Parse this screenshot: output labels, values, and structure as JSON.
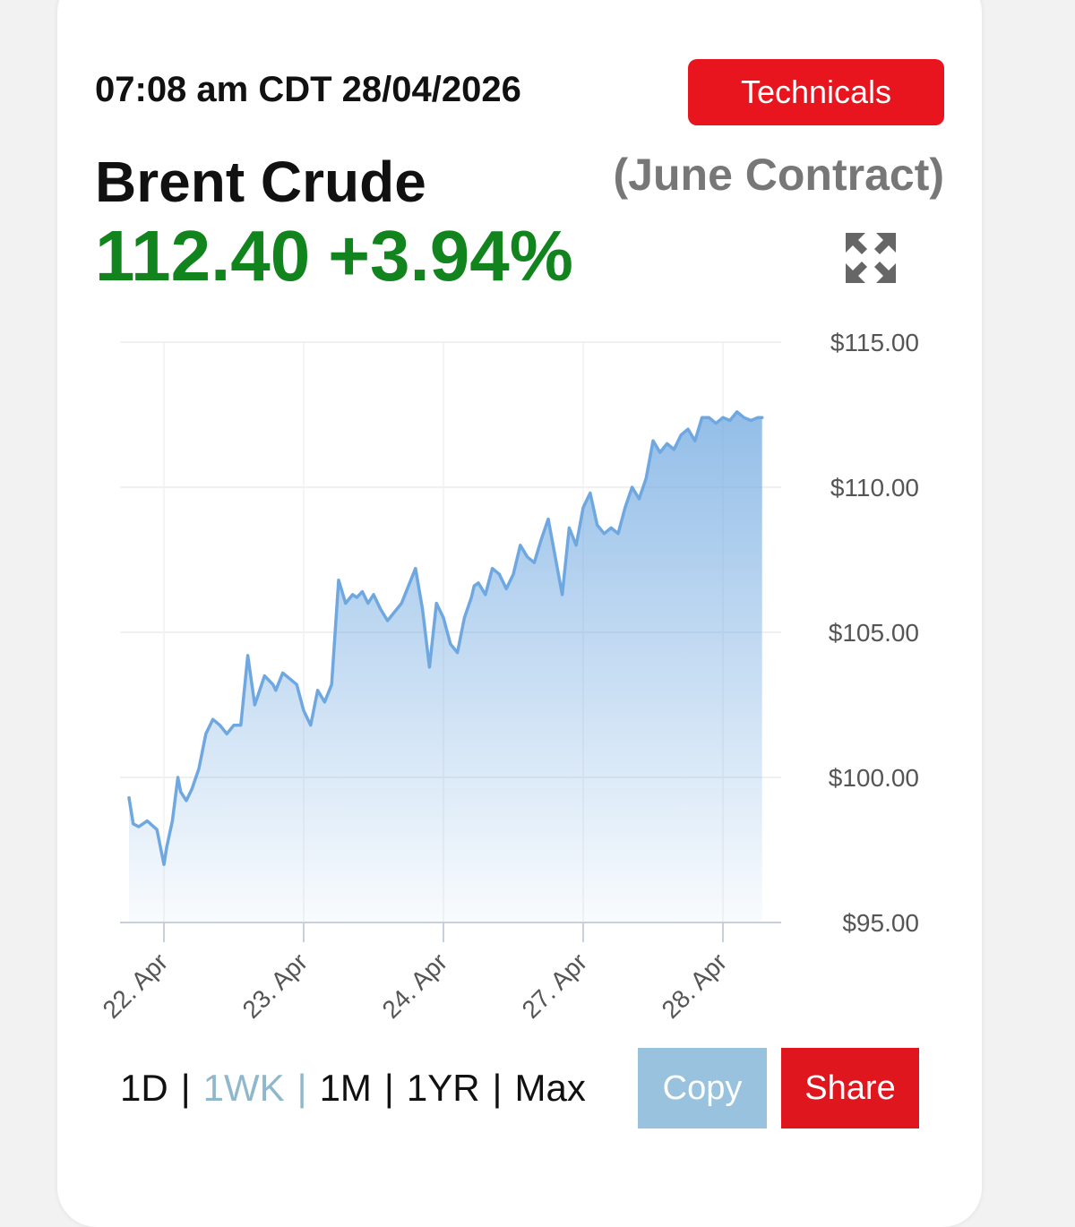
{
  "header": {
    "timestamp": "07:08 am CDT 28/04/2026",
    "technicals_label": "Technicals",
    "title": "Brent Crude",
    "contract": "(June Contract)",
    "price": "112.40",
    "change": "+3.94%",
    "expand_icon": "expand-arrows-icon"
  },
  "colors": {
    "price_green": "#11841d",
    "accent_red": "#e8151e",
    "line_blue": "#6fa8e0",
    "copy_blue": "#98c2dd"
  },
  "chart_data": {
    "type": "area",
    "title": "",
    "xlabel": "",
    "ylabel": "",
    "ylim": [
      95,
      115
    ],
    "yticks": [
      115,
      110,
      105,
      100,
      95
    ],
    "ytick_labels": [
      "$115.00",
      "$110.00",
      "$105.00",
      "$100.00",
      "$95.00"
    ],
    "xtick_labels": [
      "22. Apr",
      "23. Apr",
      "24. Apr",
      "27. Apr",
      "28. Apr"
    ],
    "grid": true,
    "series": [
      {
        "x": [
          -0.25,
          -0.22,
          -0.18,
          -0.12,
          -0.05,
          0.0,
          0.02,
          0.06,
          0.1,
          0.12,
          0.16,
          0.2,
          0.25,
          0.3,
          0.35,
          0.4,
          0.45,
          0.5,
          0.55,
          0.6,
          0.65,
          0.72,
          0.78,
          0.8,
          0.85,
          0.9,
          0.95,
          1.0,
          1.05,
          1.1,
          1.15,
          1.2,
          1.25,
          1.3,
          1.35,
          1.38,
          1.42,
          1.46,
          1.5,
          1.55,
          1.6,
          1.7,
          1.8,
          1.85,
          1.9,
          1.95,
          2.0,
          2.05,
          2.1,
          2.15,
          2.2,
          2.22,
          2.25,
          2.3,
          2.35,
          2.4,
          2.45,
          2.5,
          2.55,
          2.6,
          2.65,
          2.7,
          2.75,
          2.8,
          2.85,
          2.9,
          2.95,
          3.0,
          3.05,
          3.1,
          3.15,
          3.2,
          3.25,
          3.3,
          3.35,
          3.4,
          3.45,
          3.5,
          3.55,
          3.6,
          3.65,
          3.7,
          3.75,
          3.8,
          3.85,
          3.9,
          3.95,
          4.0,
          4.05,
          4.1,
          4.15,
          4.2,
          4.25,
          4.28
        ],
        "y": [
          99.3,
          98.4,
          98.3,
          98.5,
          98.2,
          97.0,
          97.6,
          98.5,
          100.0,
          99.5,
          99.2,
          99.6,
          100.3,
          101.5,
          102.0,
          101.8,
          101.5,
          101.8,
          101.8,
          104.2,
          102.5,
          103.5,
          103.2,
          103.0,
          103.6,
          103.4,
          103.2,
          102.3,
          101.8,
          103.0,
          102.6,
          103.2,
          106.8,
          106.0,
          106.3,
          106.2,
          106.4,
          106.0,
          106.3,
          105.8,
          105.4,
          106.0,
          107.2,
          105.8,
          103.8,
          106.0,
          105.5,
          104.6,
          104.3,
          105.5,
          106.2,
          106.6,
          106.7,
          106.3,
          107.2,
          107.0,
          106.5,
          107.0,
          108.0,
          107.6,
          107.4,
          108.2,
          108.9,
          107.6,
          106.3,
          108.6,
          108.0,
          109.3,
          109.8,
          108.7,
          108.4,
          108.6,
          108.4,
          109.3,
          110.0,
          109.6,
          110.3,
          111.6,
          111.2,
          111.5,
          111.3,
          111.8,
          112.0,
          111.6,
          112.4,
          112.4,
          112.2,
          112.4,
          112.3,
          112.6,
          112.4,
          112.3,
          112.4,
          112.4
        ]
      }
    ]
  },
  "bottom": {
    "ranges": [
      "1D",
      "1WK",
      "1M",
      "1YR",
      "Max"
    ],
    "active_range": "1WK",
    "copy_label": "Copy",
    "share_label": "Share"
  }
}
